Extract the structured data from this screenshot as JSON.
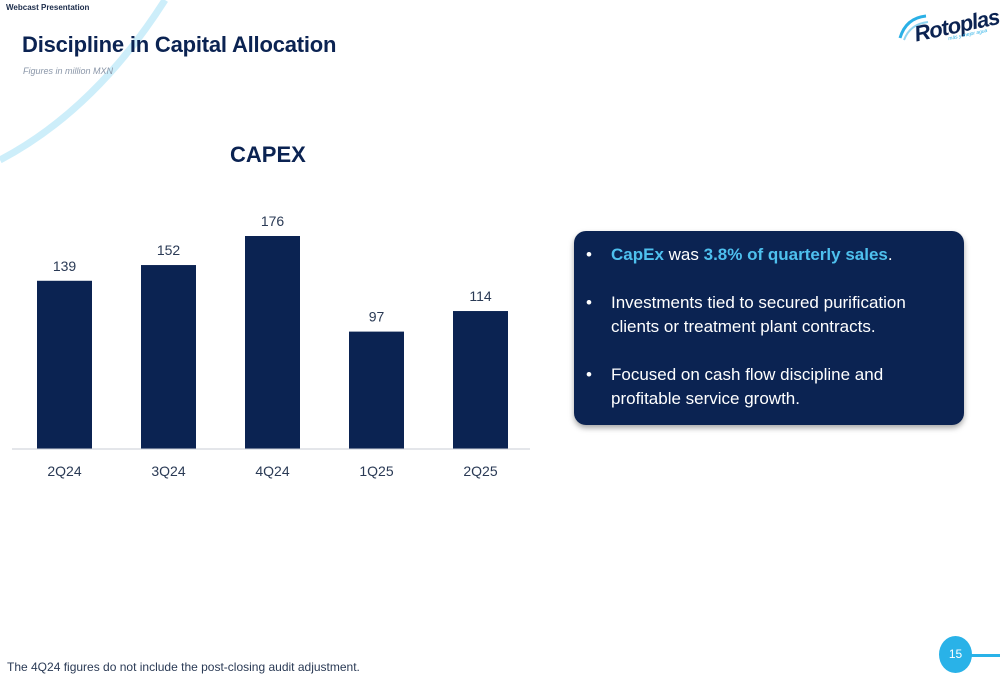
{
  "header": {
    "label": "Webcast Presentation",
    "title": "Discipline in Capital Allocation",
    "subtitle": "Figures in million MXN"
  },
  "logo": {
    "name": "Rotoplas",
    "tagline": "más y mejor agua"
  },
  "chart_data": {
    "type": "bar",
    "title": "CAPEX",
    "categories": [
      "2Q24",
      "3Q24",
      "4Q24",
      "1Q25",
      "2Q25"
    ],
    "values": [
      139,
      152,
      176,
      97,
      114
    ],
    "data_labels": [
      "139",
      "152",
      "176",
      "97",
      "114"
    ],
    "xlabel": "",
    "ylabel": "",
    "ylim": [
      0,
      176
    ],
    "grid": false,
    "bar_color": "#0b2352",
    "axis_color": "#c8cdd6"
  },
  "callout": {
    "bullet_1_part_1": "CapEx",
    "bullet_1_part_2": " was ",
    "bullet_1_part_3": "3.8% of quarterly sales",
    "bullet_1_part_4": ".",
    "bullet_2": "Investments tied to secured purification clients or treatment plant contracts.",
    "bullet_3": "Focused on cash flow discipline and profitable service growth.",
    "bullet_symbol": "•"
  },
  "footnote": "The 4Q24 figures do not include the post-closing audit adjustment.",
  "page_number": "15",
  "colors": {
    "navy": "#0b2352",
    "accent": "#29b2e8",
    "highlight": "#4ec0ee"
  }
}
